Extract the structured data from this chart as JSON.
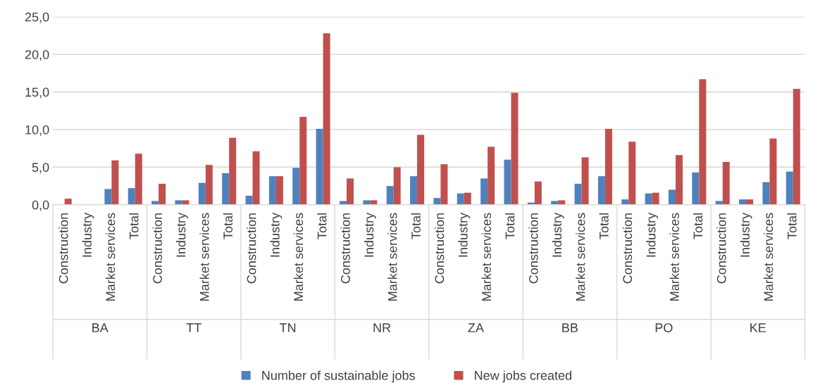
{
  "chart_data": {
    "type": "bar",
    "categories": [
      "Construction",
      "Industry",
      "Market services",
      "Total",
      "Construction",
      "Industry",
      "Market services",
      "Total",
      "Construction",
      "Industry",
      "Market services",
      "Total",
      "Construction",
      "Industry",
      "Market services",
      "Total",
      "Construction",
      "Industry",
      "Market services",
      "Total",
      "Construction",
      "Industry",
      "Market services",
      "Total",
      "Construction",
      "Industry",
      "Market services",
      "Total",
      "Construction",
      "Industry",
      "Market services",
      "Total"
    ],
    "series": [
      {
        "name": "Number of sustainable jobs",
        "color": "#4f81bd",
        "values": [
          null,
          null,
          2.1,
          2.2,
          0.5,
          0.6,
          2.9,
          4.2,
          1.2,
          3.8,
          4.9,
          10.1,
          0.5,
          0.6,
          2.5,
          3.8,
          0.9,
          1.5,
          3.5,
          6.0,
          0.3,
          0.5,
          2.8,
          3.8,
          0.7,
          1.5,
          2.0,
          4.3,
          0.5,
          0.7,
          3.0,
          4.4
        ]
      },
      {
        "name": "New jobs created",
        "color": "#c0504d",
        "values": [
          0.8,
          null,
          5.9,
          6.8,
          2.8,
          0.6,
          5.3,
          8.9,
          7.1,
          3.8,
          11.7,
          22.8,
          3.5,
          0.6,
          5.0,
          9.3,
          5.4,
          1.6,
          7.7,
          14.9,
          3.1,
          0.6,
          6.3,
          10.1,
          8.4,
          1.6,
          6.6,
          16.7,
          5.7,
          0.7,
          8.8,
          15.4
        ]
      }
    ],
    "annotations": [
      "BA",
      "TT",
      "TN",
      "NR",
      "ZA",
      "BB",
      "PO",
      "KE"
    ],
    "ylim": [
      0,
      25
    ],
    "yticks": [
      {
        "value": 0,
        "label": "0,0"
      },
      {
        "value": 5,
        "label": "5,0"
      },
      {
        "value": 10,
        "label": "10,0"
      },
      {
        "value": 15,
        "label": "15,0"
      },
      {
        "value": 20,
        "label": "20,0"
      },
      {
        "value": 25,
        "label": "25,0"
      }
    ],
    "grid": "y",
    "legend": "bottom"
  }
}
